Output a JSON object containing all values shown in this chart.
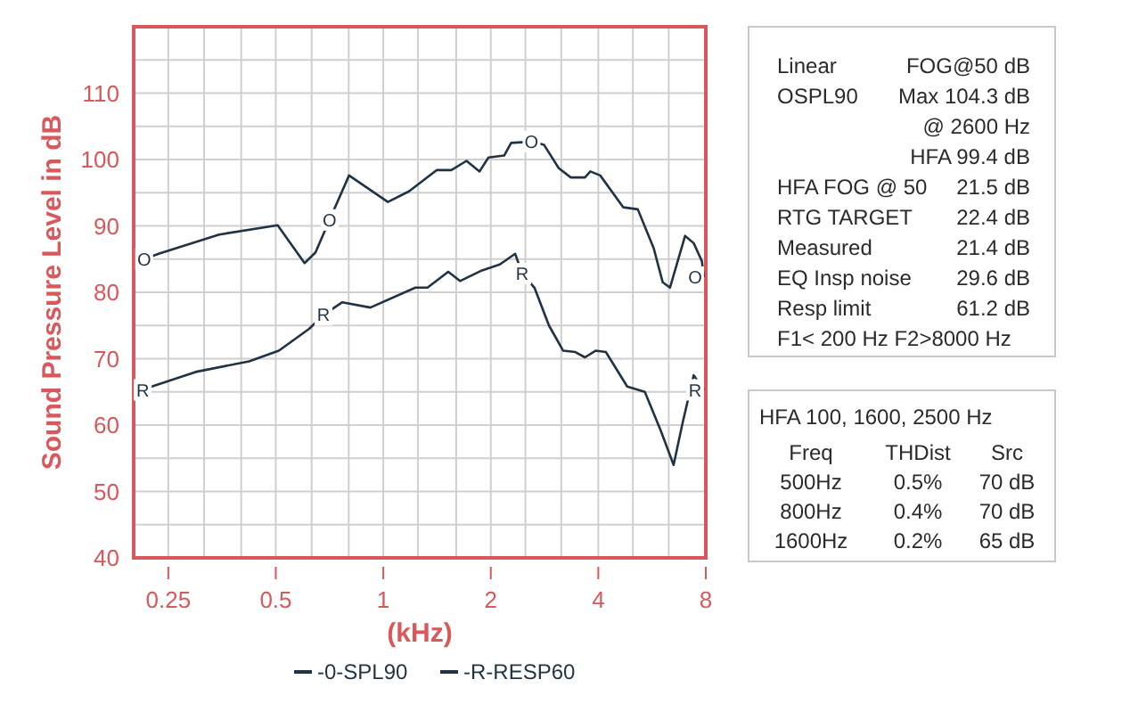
{
  "chart_data": [
    {
      "type": "line",
      "annotations": [
        {
          "text": "O",
          "x": 0.214,
          "y": 85.0
        },
        {
          "text": "O",
          "x": 0.707,
          "y": 90.9
        },
        {
          "text": "O",
          "x": 2.6,
          "y": 102.7
        },
        {
          "text": "O",
          "x": 7.9,
          "y": 82.3
        },
        {
          "text": "R",
          "x": 0.212,
          "y": 65.3
        },
        {
          "text": "R",
          "x": 0.68,
          "y": 76.6
        },
        {
          "text": "R",
          "x": 2.45,
          "y": 82.8
        },
        {
          "text": "R",
          "x": 7.9,
          "y": 65.3
        }
      ],
      "xlabel": "(kHz)",
      "ylabel": "Sound Pressure Level in dB",
      "log": "x",
      "grid": true,
      "legend": "bottom",
      "xlim": [
        0.2,
        8
      ],
      "ylim": [
        40,
        120
      ],
      "xticks": [
        0.25,
        {
          "value": 0.315,
          "label": null
        },
        {
          "value": 0.4,
          "label": null
        },
        0.5,
        {
          "value": 0.63,
          "label": null
        },
        {
          "value": 0.8,
          "label": null
        },
        1,
        {
          "value": 1.25,
          "label": null
        },
        {
          "value": 1.6,
          "label": null
        },
        2,
        {
          "value": 2.5,
          "label": null
        },
        {
          "value": 3.15,
          "label": null
        },
        4,
        {
          "value": 5,
          "label": null
        },
        {
          "value": 6.3,
          "label": null
        },
        8
      ],
      "yticks": [
        40,
        {
          "value": 45,
          "label": null
        },
        50,
        {
          "value": 55,
          "label": null
        },
        60,
        {
          "value": 65,
          "label": null
        },
        70,
        {
          "value": 75,
          "label": null
        },
        80,
        {
          "value": 85,
          "label": null
        },
        90,
        {
          "value": 95,
          "label": null
        },
        100,
        {
          "value": 105,
          "label": null
        },
        110,
        {
          "value": 115,
          "label": null
        }
      ],
      "series": [
        {
          "name": "-0-SPL90",
          "color": "#1f3344",
          "x": [
            0.214,
            0.235,
            0.347,
            0.506,
            0.602,
            0.646,
            0.707,
            0.802,
            1.03,
            1.18,
            1.41,
            1.55,
            1.71,
            1.86,
            1.97,
            2.18,
            2.28,
            2.6,
            2.82,
            3.1,
            3.35,
            3.67,
            3.8,
            4.05,
            4.7,
            5.16,
            5.72,
            6.06,
            6.35,
            7.0,
            7.4,
            7.8,
            7.9
          ],
          "values": [
            85.0,
            85.8,
            88.7,
            90.1,
            84.4,
            86.0,
            90.9,
            97.6,
            93.6,
            95.2,
            98.4,
            98.4,
            99.8,
            98.2,
            100.3,
            100.6,
            102.5,
            102.7,
            102.2,
            98.7,
            97.3,
            97.3,
            98.2,
            97.6,
            92.8,
            92.5,
            86.6,
            81.5,
            80.7,
            88.5,
            87.4,
            84.7,
            82.3
          ]
        },
        {
          "name": "-R-RESP60",
          "color": "#1f3344",
          "x": [
            0.212,
            0.219,
            0.298,
            0.421,
            0.51,
            0.62,
            0.68,
            0.768,
            0.92,
            1.23,
            1.33,
            1.52,
            1.64,
            1.89,
            2.12,
            2.34,
            2.45,
            2.65,
            2.91,
            3.19,
            3.45,
            3.67,
            3.93,
            4.2,
            4.82,
            5.4,
            5.99,
            6.5,
            6.9,
            7.4,
            7.9
          ],
          "values": [
            65.3,
            65.6,
            68.0,
            69.6,
            71.2,
            74.5,
            76.6,
            78.5,
            77.7,
            80.7,
            80.7,
            83.1,
            81.7,
            83.3,
            84.2,
            85.8,
            82.8,
            80.7,
            75.0,
            71.2,
            71.0,
            70.2,
            71.2,
            71.0,
            65.8,
            65.0,
            59.1,
            54.0,
            60.5,
            67.5,
            65.3
          ]
        }
      ]
    },
    {
      "type": "other",
      "annotations": [
        "Linear",
        "FOG@50 dB",
        "OSPL90",
        "Max 104.3 dB",
        "@ 2600 Hz",
        "HFA 99.4 dB",
        "HFA FOG @ 50",
        "21.5 dB",
        "RTG TARGET",
        "22.4 dB",
        "Measured",
        "21.4 dB",
        "EQ Insp noise",
        "29.6 dB",
        "Resp limit",
        "61.2 dB",
        "F1< 200 Hz F2>8000 Hz"
      ]
    },
    {
      "type": "other",
      "title": "HFA 100, 1600, 2500 Hz",
      "annotations": [
        "Freq",
        "THDist",
        "Src",
        "500Hz",
        "0.5%",
        "70 dB",
        "800Hz",
        "0.4%",
        "70 dB",
        "1600Hz",
        "0.2%",
        "65 dB"
      ]
    }
  ]
}
